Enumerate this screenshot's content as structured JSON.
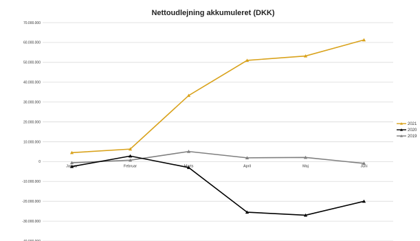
{
  "chart_data": {
    "type": "line",
    "title": "Nettoudlejning akkumuleret (DKK)",
    "categories": [
      "Januar",
      "Februar",
      "Marts",
      "April",
      "Maj",
      "Juni"
    ],
    "y_ticks": [
      "70.000.000",
      "60.000.000",
      "50.000.000",
      "40.000.000",
      "30.000.000",
      "20.000.000",
      "10.000.000",
      "0",
      "-10.000.000",
      "-20.000.000",
      "-30.000.000",
      "-40.000.000"
    ],
    "ylim": [
      -40000000,
      70000000
    ],
    "grid": true,
    "legend_position": "right",
    "series": [
      {
        "name": "2021",
        "color": "#d9a21b",
        "marker": "triangle",
        "values": [
          4500000,
          6300000,
          33300000,
          51000000,
          53200000,
          61300000
        ]
      },
      {
        "name": "2020",
        "color": "#000000",
        "marker": "triangle",
        "values": [
          -2500000,
          2800000,
          -3000000,
          -25500000,
          -27000000,
          -20000000
        ]
      },
      {
        "name": "2019",
        "color": "#7f7f7f",
        "marker": "triangle",
        "values": [
          -600000,
          700000,
          5100000,
          1900000,
          2100000,
          -900000
        ]
      }
    ]
  }
}
